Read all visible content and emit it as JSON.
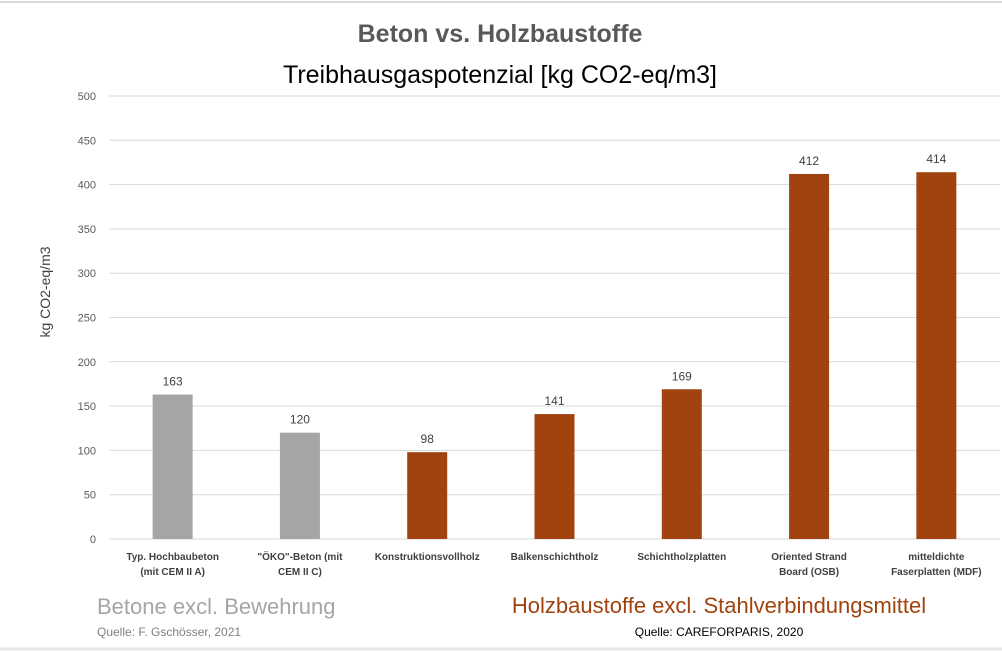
{
  "chart_data": {
    "type": "bar",
    "title": "Beton vs. Holzbaustoffe",
    "subtitle": "Treibhausgaspotenzial [kg CO2-eq/m3]",
    "xlabel": "",
    "ylabel": "kg CO2-eq/m3",
    "ylim": [
      0,
      500
    ],
    "yticks": [
      "0",
      "50",
      "100",
      "150",
      "200",
      "250",
      "300",
      "350",
      "400",
      "450",
      "500"
    ],
    "grid": true,
    "categories": [
      [
        "Typ. Hochbaubeton",
        "(mit CEM II A)"
      ],
      [
        "\"ÖKO\"-Beton (mit",
        "CEM II C)"
      ],
      [
        "Konstruktionsvollholz"
      ],
      [
        "Balkenschichtholz"
      ],
      [
        "Schichtholzplatten"
      ],
      [
        "Oriented Strand",
        "Board (OSB)"
      ],
      [
        "mitteldichte",
        "Faserplatten (MDF)"
      ]
    ],
    "values": [
      163,
      120,
      98,
      141,
      169,
      412,
      414
    ],
    "groups": [
      "beton",
      "beton",
      "holz",
      "holz",
      "holz",
      "holz",
      "holz"
    ],
    "colors": {
      "beton": "#A5A5A5",
      "holz": "#A0430E"
    },
    "annotations": {
      "beton_label": "Betone excl. Bewehrung",
      "beton_source": "Quelle: F. Gschösser, 2021",
      "holz_label": "Holzbaustoffe excl. Stahlverbindungsmittel",
      "holz_source": "Quelle: CAREFORPARIS, 2020"
    }
  }
}
